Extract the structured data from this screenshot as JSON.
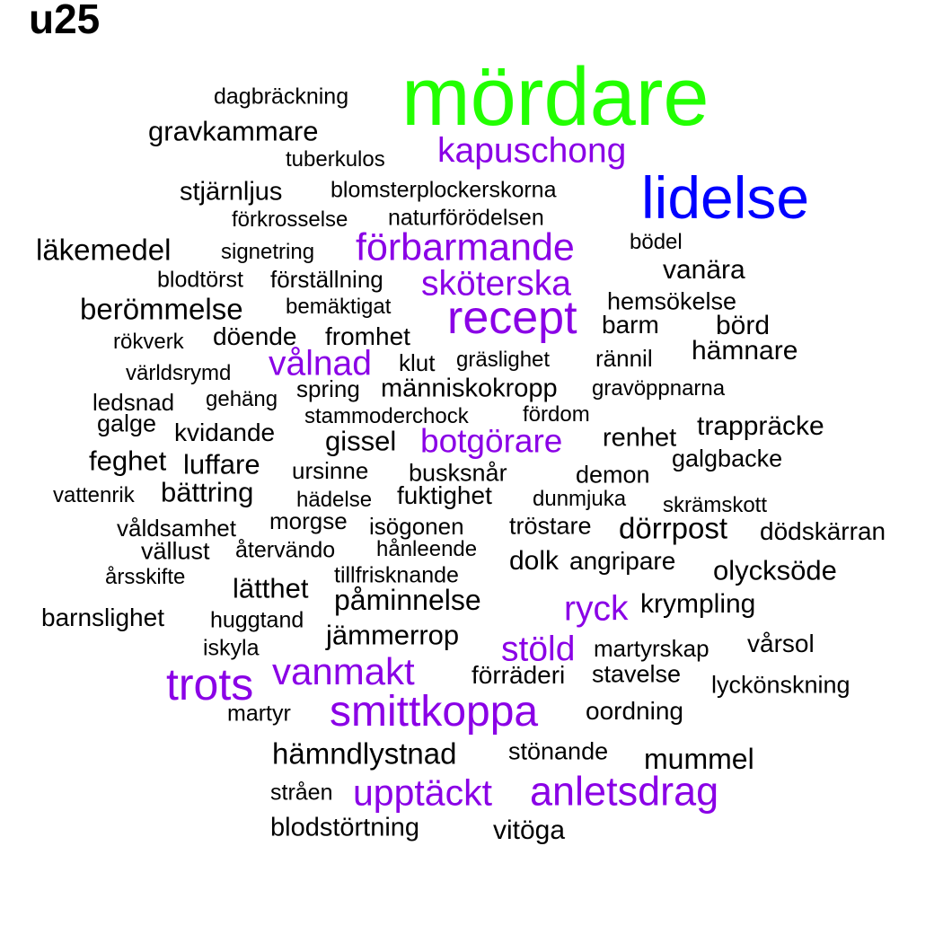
{
  "title": "u25",
  "colors": {
    "green": "#22ff00",
    "blue": "#0000ff",
    "purple": "#8a00e6",
    "black": "#000000"
  },
  "words": [
    {
      "text": "mördare",
      "color": "green"
    },
    {
      "text": "lidelse",
      "color": "blue"
    },
    {
      "text": "kapuschong",
      "color": "purple"
    },
    {
      "text": "förbarmande",
      "color": "purple"
    },
    {
      "text": "sköterska",
      "color": "purple"
    },
    {
      "text": "recept",
      "color": "purple"
    },
    {
      "text": "vålnad",
      "color": "purple"
    },
    {
      "text": "botgörare",
      "color": "purple"
    },
    {
      "text": "ryck",
      "color": "purple"
    },
    {
      "text": "stöld",
      "color": "purple"
    },
    {
      "text": "trots",
      "color": "purple"
    },
    {
      "text": "vanmakt",
      "color": "purple"
    },
    {
      "text": "smittkoppa",
      "color": "purple"
    },
    {
      "text": "upptäckt",
      "color": "purple"
    },
    {
      "text": "anletsdrag",
      "color": "purple"
    },
    {
      "text": "dagbräckning",
      "color": "black"
    },
    {
      "text": "gravkammare",
      "color": "black"
    },
    {
      "text": "tuberkulos",
      "color": "black"
    },
    {
      "text": "stjärnljus",
      "color": "black"
    },
    {
      "text": "blomsterplockerskorna",
      "color": "black"
    },
    {
      "text": "förkrosselse",
      "color": "black"
    },
    {
      "text": "naturförödelsen",
      "color": "black"
    },
    {
      "text": "läkemedel",
      "color": "black"
    },
    {
      "text": "signetring",
      "color": "black"
    },
    {
      "text": "bödel",
      "color": "black"
    },
    {
      "text": "vanära",
      "color": "black"
    },
    {
      "text": "blodtörst",
      "color": "black"
    },
    {
      "text": "förställning",
      "color": "black"
    },
    {
      "text": "hemsökelse",
      "color": "black"
    },
    {
      "text": "berömmelse",
      "color": "black"
    },
    {
      "text": "bemäktigat",
      "color": "black"
    },
    {
      "text": "barm",
      "color": "black"
    },
    {
      "text": "börd",
      "color": "black"
    },
    {
      "text": "rökverk",
      "color": "black"
    },
    {
      "text": "döende",
      "color": "black"
    },
    {
      "text": "fromhet",
      "color": "black"
    },
    {
      "text": "hämnare",
      "color": "black"
    },
    {
      "text": "världsrymd",
      "color": "black"
    },
    {
      "text": "klut",
      "color": "black"
    },
    {
      "text": "gräslighet",
      "color": "black"
    },
    {
      "text": "rännil",
      "color": "black"
    },
    {
      "text": "ledsnad",
      "color": "black"
    },
    {
      "text": "gehäng",
      "color": "black"
    },
    {
      "text": "spring",
      "color": "black"
    },
    {
      "text": "människokropp",
      "color": "black"
    },
    {
      "text": "gravöppnarna",
      "color": "black"
    },
    {
      "text": "galge",
      "color": "black"
    },
    {
      "text": "stammoderchock",
      "color": "black"
    },
    {
      "text": "fördom",
      "color": "black"
    },
    {
      "text": "trappräcke",
      "color": "black"
    },
    {
      "text": "kvidande",
      "color": "black"
    },
    {
      "text": "gissel",
      "color": "black"
    },
    {
      "text": "renhet",
      "color": "black"
    },
    {
      "text": "feghet",
      "color": "black"
    },
    {
      "text": "luffare",
      "color": "black"
    },
    {
      "text": "galgbacke",
      "color": "black"
    },
    {
      "text": "ursinne",
      "color": "black"
    },
    {
      "text": "busksnår",
      "color": "black"
    },
    {
      "text": "demon",
      "color": "black"
    },
    {
      "text": "vattenrik",
      "color": "black"
    },
    {
      "text": "bättring",
      "color": "black"
    },
    {
      "text": "fuktighet",
      "color": "black"
    },
    {
      "text": "hädelse",
      "color": "black"
    },
    {
      "text": "dunmjuka",
      "color": "black"
    },
    {
      "text": "skrämskott",
      "color": "black"
    },
    {
      "text": "morgse",
      "color": "black"
    },
    {
      "text": "våldsamhet",
      "color": "black"
    },
    {
      "text": "isögonen",
      "color": "black"
    },
    {
      "text": "tröstare",
      "color": "black"
    },
    {
      "text": "dörrpost",
      "color": "black"
    },
    {
      "text": "dödskärran",
      "color": "black"
    },
    {
      "text": "vällust",
      "color": "black"
    },
    {
      "text": "återvändo",
      "color": "black"
    },
    {
      "text": "hånleende",
      "color": "black"
    },
    {
      "text": "dolk",
      "color": "black"
    },
    {
      "text": "angripare",
      "color": "black"
    },
    {
      "text": "olycksöde",
      "color": "black"
    },
    {
      "text": "årsskifte",
      "color": "black"
    },
    {
      "text": "tillfrisknande",
      "color": "black"
    },
    {
      "text": "lätthet",
      "color": "black"
    },
    {
      "text": "påminnelse",
      "color": "black"
    },
    {
      "text": "krympling",
      "color": "black"
    },
    {
      "text": "barnslighet",
      "color": "black"
    },
    {
      "text": "huggtand",
      "color": "black"
    },
    {
      "text": "jämmerrop",
      "color": "black"
    },
    {
      "text": "vårsol",
      "color": "black"
    },
    {
      "text": "iskyla",
      "color": "black"
    },
    {
      "text": "martyrskap",
      "color": "black"
    },
    {
      "text": "förräderi",
      "color": "black"
    },
    {
      "text": "stavelse",
      "color": "black"
    },
    {
      "text": "lyckönskning",
      "color": "black"
    },
    {
      "text": "martyr",
      "color": "black"
    },
    {
      "text": "oordning",
      "color": "black"
    },
    {
      "text": "hämndlystnad",
      "color": "black"
    },
    {
      "text": "stönande",
      "color": "black"
    },
    {
      "text": "mummel",
      "color": "black"
    },
    {
      "text": "stråen",
      "color": "black"
    },
    {
      "text": "blodstörtning",
      "color": "black"
    },
    {
      "text": "vitöga",
      "color": "black"
    }
  ]
}
